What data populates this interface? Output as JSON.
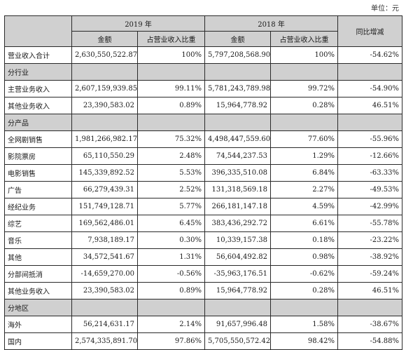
{
  "unit_label": "单位：元",
  "header": {
    "year_2019": "2019 年",
    "year_2018": "2018 年",
    "yoy": "同比增减",
    "amount": "金额",
    "share": "占营业收入比重"
  },
  "rows": [
    {
      "type": "data",
      "label": "营业收入合计",
      "a19": "2,630,550,522.87",
      "p19": "100%",
      "a18": "5,797,208,568.90",
      "p18": "100%",
      "yoy": "-54.62%"
    },
    {
      "type": "section",
      "label": "分行业"
    },
    {
      "type": "data",
      "label": "主营业务收入",
      "a19": "2,607,159,939.85",
      "p19": "99.11%",
      "a18": "5,781,243,789.98",
      "p18": "99.72%",
      "yoy": "-54.90%"
    },
    {
      "type": "data",
      "label": "其他业务收入",
      "a19": "23,390,583.02",
      "p19": "0.89%",
      "a18": "15,964,778.92",
      "p18": "0.28%",
      "yoy": "46.51%"
    },
    {
      "type": "section",
      "label": "分产品"
    },
    {
      "type": "data",
      "label": "全网剧销售",
      "a19": "1,981,266,982.17",
      "p19": "75.32%",
      "a18": "4,498,447,559.60",
      "p18": "77.60%",
      "yoy": "-55.96%"
    },
    {
      "type": "data",
      "label": "影院票房",
      "a19": "65,110,550.29",
      "p19": "2.48%",
      "a18": "74,544,237.53",
      "p18": "1.29%",
      "yoy": "-12.66%"
    },
    {
      "type": "data",
      "label": "电影销售",
      "a19": "145,339,892.52",
      "p19": "5.53%",
      "a18": "396,335,510.08",
      "p18": "6.84%",
      "yoy": "-63.33%"
    },
    {
      "type": "data",
      "label": "广告",
      "a19": "66,279,439.31",
      "p19": "2.52%",
      "a18": "131,318,569.18",
      "p18": "2.27%",
      "yoy": "-49.53%"
    },
    {
      "type": "data",
      "label": "经纪业务",
      "a19": "151,749,128.71",
      "p19": "5.77%",
      "a18": "266,181,147.18",
      "p18": "4.59%",
      "yoy": "-42.99%"
    },
    {
      "type": "data",
      "label": "综艺",
      "a19": "169,562,486.01",
      "p19": "6.45%",
      "a18": "383,436,292.72",
      "p18": "6.61%",
      "yoy": "-55.78%"
    },
    {
      "type": "data",
      "label": "音乐",
      "a19": "7,938,189.17",
      "p19": "0.30%",
      "a18": "10,339,157.38",
      "p18": "0.18%",
      "yoy": "-23.22%"
    },
    {
      "type": "data",
      "label": "其他",
      "a19": "34,572,541.67",
      "p19": "1.31%",
      "a18": "56,604,492.82",
      "p18": "0.98%",
      "yoy": "-38.92%"
    },
    {
      "type": "data",
      "label": "分部间抵消",
      "a19": "-14,659,270.00",
      "p19": "-0.56%",
      "a18": "-35,963,176.51",
      "p18": "-0.62%",
      "yoy": "-59.24%"
    },
    {
      "type": "data",
      "label": "其他业务收入",
      "a19": "23,390,583.02",
      "p19": "0.89%",
      "a18": "15,964,778.92",
      "p18": "0.28%",
      "yoy": "46.51%"
    },
    {
      "type": "section",
      "label": "分地区"
    },
    {
      "type": "data",
      "label": "海外",
      "a19": "56,214,631.17",
      "p19": "2.14%",
      "a18": "91,657,996.48",
      "p18": "1.58%",
      "yoy": "-38.67%"
    },
    {
      "type": "data",
      "label": "国内",
      "a19": "2,574,335,891.70",
      "p19": "97.86%",
      "a18": "5,705,550,572.42",
      "p18": "98.42%",
      "yoy": "-54.88%"
    }
  ]
}
